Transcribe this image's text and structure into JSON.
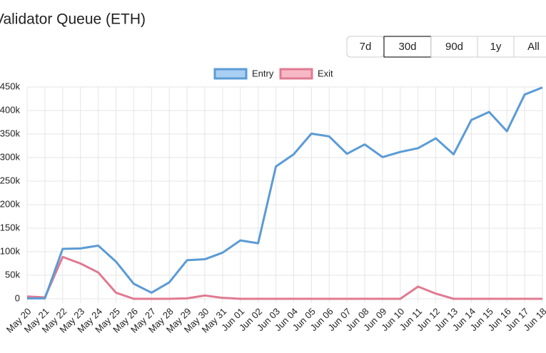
{
  "title": "Validator Queue (ETH)",
  "buttons": [
    {
      "label": "7d",
      "selected": false
    },
    {
      "label": "30d",
      "selected": true
    },
    {
      "label": "90d",
      "selected": false
    },
    {
      "label": "1y",
      "selected": false
    },
    {
      "label": "All",
      "selected": false
    }
  ],
  "chart_data": {
    "type": "line",
    "categories": [
      "May 20",
      "May 21",
      "May 22",
      "May 23",
      "May 24",
      "May 25",
      "May 26",
      "May 27",
      "May 28",
      "May 29",
      "May 30",
      "May 31",
      "Jun 01",
      "Jun 02",
      "Jun 03",
      "Jun 04",
      "Jun 05",
      "Jun 06",
      "Jun 07",
      "Jun 08",
      "Jun 09",
      "Jun 10",
      "Jun 11",
      "Jun 12",
      "Jun 13",
      "Jun 14",
      "Jun 15",
      "Jun 16",
      "Jun 17",
      "Jun 18"
    ],
    "series": [
      {
        "name": "Entry",
        "color": "#5b9bd5",
        "fill": "#a9cff3",
        "values": [
          1000,
          1000,
          106000,
          107000,
          113000,
          79000,
          32000,
          13000,
          35000,
          82000,
          84000,
          98000,
          124000,
          118000,
          281000,
          307000,
          351000,
          345000,
          308000,
          328000,
          301000,
          312000,
          320000,
          341000,
          307000,
          380000,
          397000,
          356000,
          434000,
          449000
        ]
      },
      {
        "name": "Exit",
        "color": "#e07a91",
        "fill": "#f7b8c5",
        "values": [
          5000,
          3000,
          89000,
          75000,
          56000,
          13000,
          0,
          0,
          0,
          1000,
          7000,
          2000,
          0,
          0,
          0,
          0,
          0,
          0,
          0,
          0,
          0,
          0,
          26000,
          11000,
          0,
          0,
          0,
          0,
          0,
          0
        ]
      }
    ],
    "ylim": [
      0,
      450000
    ],
    "yticks": [
      {
        "value": 0,
        "label": "0"
      },
      {
        "value": 50000,
        "label": "50k"
      },
      {
        "value": 100000,
        "label": "100k"
      },
      {
        "value": 150000,
        "label": "150k"
      },
      {
        "value": 200000,
        "label": "200k"
      },
      {
        "value": 250000,
        "label": "250k"
      },
      {
        "value": 300000,
        "label": "300k"
      },
      {
        "value": 350000,
        "label": "350k"
      },
      {
        "value": 400000,
        "label": "400k"
      },
      {
        "value": 450000,
        "label": "450k"
      }
    ],
    "grid": true
  }
}
